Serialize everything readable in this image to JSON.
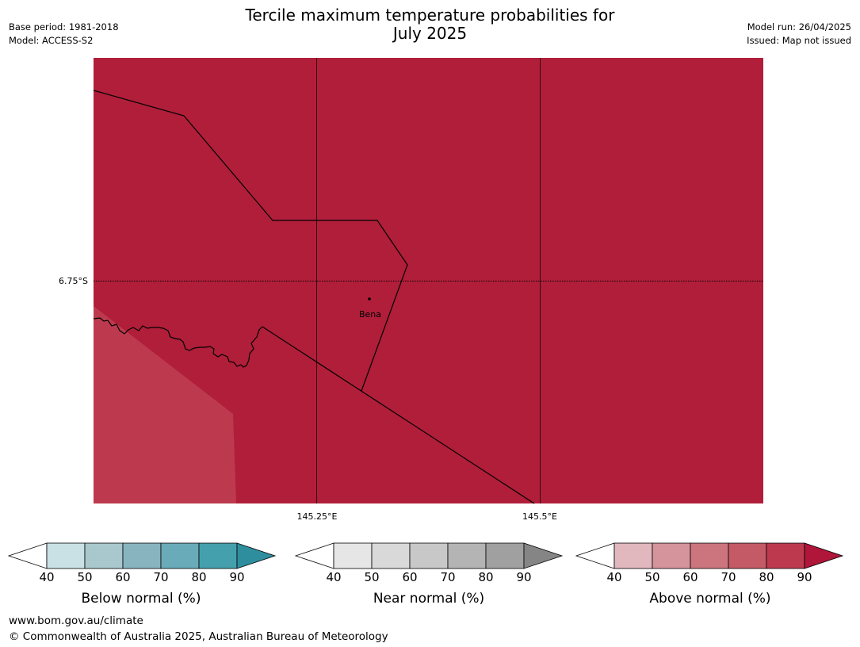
{
  "header": {
    "title_line1": "Tercile maximum temperature probabilities for",
    "title_line2": "July 2025",
    "base_period": "Base period: 1981-2018",
    "model": "Model: ACCESS-S2",
    "model_run": "Model run: 26/04/2025",
    "issued": "Issued: Map not issued"
  },
  "map": {
    "lat_label": "6.75°S",
    "lon_labels": [
      "145.25°E",
      "145.5°E"
    ],
    "place_name": "Bena",
    "fill_colors": {
      "main": "#b01e3a",
      "lower": "#bd3a4e"
    }
  },
  "colorbars": [
    {
      "label": "Below normal (%)",
      "ticks": [
        "40",
        "50",
        "60",
        "70",
        "80",
        "90"
      ],
      "colors": [
        "#c9e1e5",
        "#a8c8cd",
        "#88b4c0",
        "#6aabb9",
        "#45a0ae",
        "#2e8e9e"
      ]
    },
    {
      "label": "Near normal (%)",
      "ticks": [
        "40",
        "50",
        "60",
        "70",
        "80",
        "90"
      ],
      "colors": [
        "#e6e6e6",
        "#d9d9d9",
        "#c8c8c8",
        "#b4b4b4",
        "#a0a0a0",
        "#858585"
      ]
    },
    {
      "label": "Above normal (%)",
      "ticks": [
        "40",
        "50",
        "60",
        "70",
        "80",
        "90"
      ],
      "colors": [
        "#e1b8bd",
        "#d5939b",
        "#cc757e",
        "#c45a66",
        "#bd3a4e",
        "#b0153a"
      ]
    }
  ],
  "footer": {
    "url": "www.bom.gov.au/climate",
    "copyright": "© Commonwealth of Australia 2025, Australian Bureau of Meteorology"
  }
}
